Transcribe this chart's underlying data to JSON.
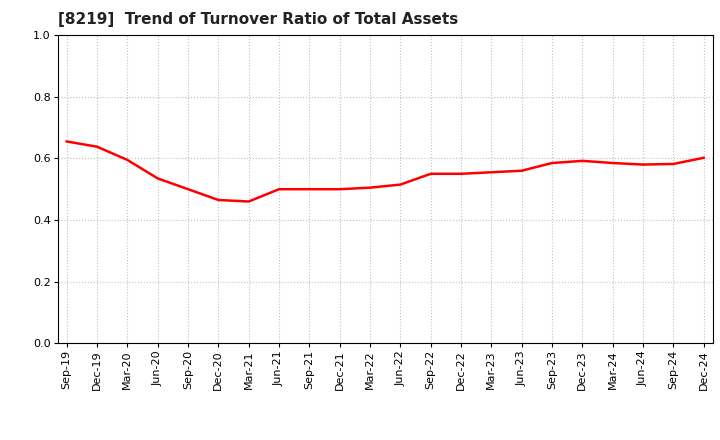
{
  "title": "[8219]  Trend of Turnover Ratio of Total Assets",
  "x_labels": [
    "Sep-19",
    "Dec-19",
    "Mar-20",
    "Jun-20",
    "Sep-20",
    "Dec-20",
    "Mar-21",
    "Jun-21",
    "Sep-21",
    "Dec-21",
    "Mar-22",
    "Jun-22",
    "Sep-22",
    "Dec-22",
    "Mar-23",
    "Jun-23",
    "Sep-23",
    "Dec-23",
    "Mar-24",
    "Jun-24",
    "Sep-24",
    "Dec-24"
  ],
  "y_values": [
    0.655,
    0.638,
    0.595,
    0.535,
    0.5,
    0.465,
    0.46,
    0.5,
    0.5,
    0.5,
    0.505,
    0.515,
    0.55,
    0.55,
    0.555,
    0.56,
    0.585,
    0.592,
    0.585,
    0.58,
    0.582,
    0.602
  ],
  "line_color": "#ff0000",
  "line_width": 1.8,
  "ylim": [
    0.0,
    1.0
  ],
  "yticks": [
    0.0,
    0.2,
    0.4,
    0.6,
    0.8,
    1.0
  ],
  "grid_color": "#bbbbbb",
  "bg_color": "#ffffff",
  "title_fontsize": 11,
  "axis_fontsize": 8,
  "title_color": "#222222"
}
